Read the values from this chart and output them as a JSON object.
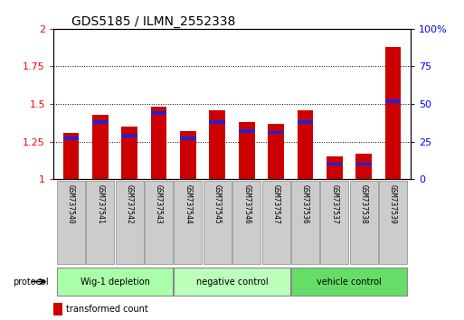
{
  "title": "GDS5185 / ILMN_2552338",
  "samples": [
    "GSM737540",
    "GSM737541",
    "GSM737542",
    "GSM737543",
    "GSM737544",
    "GSM737545",
    "GSM737546",
    "GSM737547",
    "GSM737536",
    "GSM737537",
    "GSM737538",
    "GSM737539"
  ],
  "transformed_count": [
    1.31,
    1.43,
    1.35,
    1.48,
    1.32,
    1.46,
    1.38,
    1.37,
    1.46,
    1.15,
    1.17,
    1.88
  ],
  "percentile_rank": [
    27,
    38,
    29,
    44,
    27,
    38,
    32,
    31,
    38,
    10,
    10,
    52
  ],
  "groups": [
    {
      "label": "Wig-1 depletion",
      "start": 0,
      "end": 3,
      "color": "#aaffaa"
    },
    {
      "label": "negative control",
      "start": 4,
      "end": 7,
      "color": "#bbffbb"
    },
    {
      "label": "vehicle control",
      "start": 8,
      "end": 11,
      "color": "#66dd66"
    }
  ],
  "ylim_left": [
    1.0,
    2.0
  ],
  "ylim_right": [
    0,
    100
  ],
  "yticks_left": [
    1.0,
    1.25,
    1.5,
    1.75,
    2.0
  ],
  "ytick_labels_left": [
    "1",
    "1.25",
    "1.5",
    "1.75",
    "2"
  ],
  "yticks_right": [
    0,
    25,
    50,
    75,
    100
  ],
  "ytick_labels_right": [
    "0",
    "25",
    "50",
    "75",
    "100%"
  ],
  "bar_color_red": "#cc0000",
  "bar_color_blue": "#2222cc",
  "bar_width": 0.55,
  "bg_color": "#ffffff",
  "sample_box_color": "#cccccc"
}
